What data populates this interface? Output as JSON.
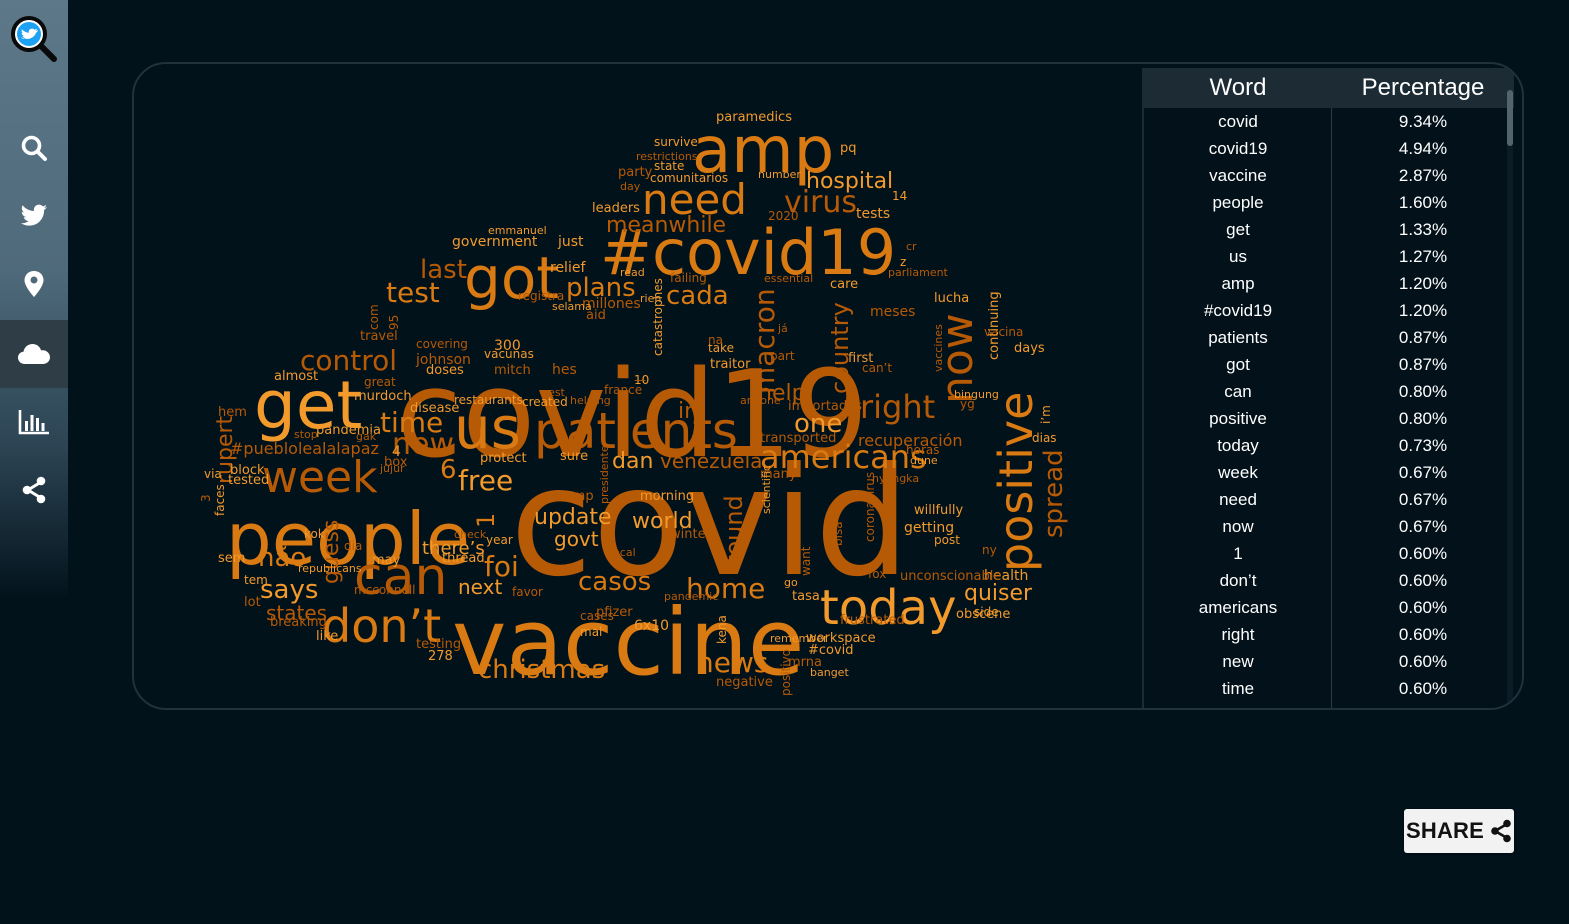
{
  "sidebar": {
    "items": [
      {
        "name": "search",
        "icon": "search-icon"
      },
      {
        "name": "twitter",
        "icon": "twitter-bird-icon"
      },
      {
        "name": "location",
        "icon": "map-pin-icon"
      },
      {
        "name": "word-cloud",
        "icon": "cloud-icon",
        "active": true
      },
      {
        "name": "chart",
        "icon": "bar-chart-icon"
      },
      {
        "name": "share",
        "icon": "share-icon"
      }
    ],
    "logo": "twitter-search-logo"
  },
  "table": {
    "headers": {
      "word": "Word",
      "percentage": "Percentage"
    },
    "rows": [
      {
        "word": "covid",
        "pct": "9.34%"
      },
      {
        "word": "covid19",
        "pct": "4.94%"
      },
      {
        "word": "vaccine",
        "pct": "2.87%"
      },
      {
        "word": "people",
        "pct": "1.60%"
      },
      {
        "word": "get",
        "pct": "1.33%"
      },
      {
        "word": "us",
        "pct": "1.27%"
      },
      {
        "word": "amp",
        "pct": "1.20%"
      },
      {
        "word": "#covid19",
        "pct": "1.20%"
      },
      {
        "word": "patients",
        "pct": "0.87%"
      },
      {
        "word": "got",
        "pct": "0.87%"
      },
      {
        "word": "can",
        "pct": "0.80%"
      },
      {
        "word": "positive",
        "pct": "0.80%"
      },
      {
        "word": "today",
        "pct": "0.73%"
      },
      {
        "word": "week",
        "pct": "0.67%"
      },
      {
        "word": "need",
        "pct": "0.67%"
      },
      {
        "word": "now",
        "pct": "0.67%"
      },
      {
        "word": "1",
        "pct": "0.60%"
      },
      {
        "word": "don’t",
        "pct": "0.60%"
      },
      {
        "word": "americans",
        "pct": "0.60%"
      },
      {
        "word": "right",
        "pct": "0.60%"
      },
      {
        "word": "new",
        "pct": "0.60%"
      },
      {
        "word": "time",
        "pct": "0.60%"
      }
    ]
  },
  "wordcloud": {
    "colors": {
      "dark": "#b75a05",
      "mid": "#d97a12",
      "light": "#f39a2c",
      "dim": "#8a4a0c"
    },
    "words": [
      {
        "t": "covid",
        "c": "dark"
      },
      {
        "t": "covid19",
        "c": "dark"
      },
      {
        "t": "vaccine",
        "c": "mid"
      },
      {
        "t": "people",
        "c": "mid"
      },
      {
        "t": "get",
        "c": "light"
      },
      {
        "t": "us",
        "c": "mid"
      },
      {
        "t": "amp",
        "c": "mid"
      },
      {
        "t": "#covid19",
        "c": "mid"
      },
      {
        "t": "patients",
        "c": "dark"
      },
      {
        "t": "got",
        "c": "mid"
      },
      {
        "t": "can",
        "c": "dark"
      },
      {
        "t": "positive",
        "c": "mid"
      },
      {
        "t": "today",
        "c": "light"
      },
      {
        "t": "week",
        "c": "dark"
      },
      {
        "t": "need",
        "c": "mid"
      },
      {
        "t": "now",
        "c": "dark"
      },
      {
        "t": "don’t",
        "c": "mid"
      },
      {
        "t": "americans",
        "c": "mid"
      },
      {
        "t": "right",
        "c": "dark"
      },
      {
        "t": "new",
        "c": "dark"
      },
      {
        "t": "time",
        "c": "mid"
      },
      {
        "t": "virus",
        "c": "dark"
      },
      {
        "t": "hospital",
        "c": "light"
      },
      {
        "t": "plans",
        "c": "mid"
      },
      {
        "t": "cada",
        "c": "mid"
      },
      {
        "t": "macron",
        "c": "dark"
      },
      {
        "t": "country",
        "c": "dark"
      },
      {
        "t": "test",
        "c": "mid"
      },
      {
        "t": "last",
        "c": "dark"
      },
      {
        "t": "control",
        "c": "dark"
      },
      {
        "t": "christmas",
        "c": "mid"
      },
      {
        "t": "news",
        "c": "mid"
      },
      {
        "t": "home",
        "c": "mid"
      },
      {
        "t": "casos",
        "c": "mid"
      },
      {
        "t": "foi",
        "c": "mid"
      },
      {
        "t": "free",
        "c": "light"
      },
      {
        "t": "says",
        "c": "light"
      },
      {
        "t": "não",
        "c": "mid"
      },
      {
        "t": "states",
        "c": "dark"
      },
      {
        "t": "spread",
        "c": "dark"
      },
      {
        "t": "quiser",
        "c": "light"
      },
      {
        "t": "one",
        "c": "light"
      },
      {
        "t": "help",
        "c": "dark"
      },
      {
        "t": "world",
        "c": "light"
      },
      {
        "t": "update",
        "c": "light"
      },
      {
        "t": "govt",
        "c": "light"
      },
      {
        "t": "there’s",
        "c": "light"
      },
      {
        "t": "next",
        "c": "light"
      },
      {
        "t": "dan",
        "c": "light"
      },
      {
        "t": "venezuela",
        "c": "dark"
      },
      {
        "t": "ini",
        "c": "dark"
      },
      {
        "t": "rupert",
        "c": "dark"
      },
      {
        "t": "6",
        "c": "mid"
      },
      {
        "t": "1",
        "c": "mid"
      },
      {
        "t": "meanwhile",
        "c": "dark"
      },
      {
        "t": "guess",
        "c": "dark"
      },
      {
        "t": "found",
        "c": "dark"
      },
      {
        "t": "recuperación",
        "c": "dark"
      },
      {
        "t": "#pueblolealalapaz",
        "c": "dark"
      },
      {
        "t": "paramedics",
        "c": "light"
      },
      {
        "t": "survive",
        "c": "light"
      },
      {
        "t": "party",
        "c": "dark"
      },
      {
        "t": "state",
        "c": "light"
      },
      {
        "t": "comunitarios",
        "c": "light"
      },
      {
        "t": "leaders",
        "c": "light"
      },
      {
        "t": "government",
        "c": "light"
      },
      {
        "t": "just",
        "c": "light"
      },
      {
        "t": "relief",
        "c": "light"
      },
      {
        "t": "registra",
        "c": "dark"
      },
      {
        "t": "millones",
        "c": "dark"
      },
      {
        "t": "aid",
        "c": "dark"
      },
      {
        "t": "tests",
        "c": "light"
      },
      {
        "t": "care",
        "c": "light"
      },
      {
        "t": "meses",
        "c": "dark"
      },
      {
        "t": "lucha",
        "c": "light"
      },
      {
        "t": "vacina",
        "c": "dark"
      },
      {
        "t": "days",
        "c": "light"
      },
      {
        "t": "covering",
        "c": "dark"
      },
      {
        "t": "johnson",
        "c": "dark"
      },
      {
        "t": "doses",
        "c": "light"
      },
      {
        "t": "300",
        "c": "light"
      },
      {
        "t": "vacunas",
        "c": "light"
      },
      {
        "t": "mitch",
        "c": "dark"
      },
      {
        "t": "hes",
        "c": "dark"
      },
      {
        "t": "first",
        "c": "light"
      },
      {
        "t": "can’t",
        "c": "dark"
      },
      {
        "t": "take",
        "c": "light"
      },
      {
        "t": "traitor",
        "c": "light"
      },
      {
        "t": "part",
        "c": "dark"
      },
      {
        "t": "almost",
        "c": "light"
      },
      {
        "t": "murdoch",
        "c": "light"
      },
      {
        "t": "restaurants",
        "c": "light"
      },
      {
        "t": "created",
        "c": "light"
      },
      {
        "t": "disease",
        "c": "light"
      },
      {
        "t": "pandemia",
        "c": "light"
      },
      {
        "t": "france",
        "c": "dark"
      },
      {
        "t": "importados",
        "c": "dark"
      },
      {
        "t": "transported",
        "c": "dark"
      },
      {
        "t": "horas",
        "c": "dark"
      },
      {
        "t": "dias",
        "c": "light"
      },
      {
        "t": "bingung",
        "c": "light"
      },
      {
        "t": "protect",
        "c": "light"
      },
      {
        "t": "sure",
        "c": "light"
      },
      {
        "t": "many",
        "c": "dark"
      },
      {
        "t": "block",
        "c": "light"
      },
      {
        "t": "tested",
        "c": "light"
      },
      {
        "t": "box",
        "c": "dark"
      },
      {
        "t": "hem",
        "c": "dark"
      },
      {
        "t": "trump",
        "c": "dark"
      },
      {
        "t": "morning",
        "c": "light"
      },
      {
        "t": "willfully",
        "c": "light"
      },
      {
        "t": "getting",
        "c": "light"
      },
      {
        "t": "post",
        "c": "light"
      },
      {
        "t": "health",
        "c": "light"
      },
      {
        "t": "year",
        "c": "light"
      },
      {
        "t": "thread",
        "c": "light"
      },
      {
        "t": "favor",
        "c": "dark"
      },
      {
        "t": "pfizer",
        "c": "dark"
      },
      {
        "t": "tasa",
        "c": "light"
      },
      {
        "t": "fox",
        "c": "dark"
      },
      {
        "t": "unconscionable",
        "c": "dark"
      },
      {
        "t": "obscene",
        "c": "light"
      },
      {
        "t": "side",
        "c": "light"
      },
      {
        "t": "frustrated",
        "c": "dark"
      },
      {
        "t": "workspace",
        "c": "light"
      },
      {
        "t": "#covid",
        "c": "light"
      },
      {
        "t": "mrna",
        "c": "dark"
      },
      {
        "t": "negative",
        "c": "dark"
      },
      {
        "t": "testing",
        "c": "dark"
      },
      {
        "t": "278",
        "c": "light"
      },
      {
        "t": "6x10",
        "c": "light"
      },
      {
        "t": "cases",
        "c": "dark"
      },
      {
        "t": "mal",
        "c": "light"
      },
      {
        "t": "mcconnell",
        "c": "dark"
      },
      {
        "t": "like",
        "c": "light"
      },
      {
        "t": "breaking",
        "c": "dark"
      },
      {
        "t": "lot",
        "c": "dark"
      },
      {
        "t": "sem",
        "c": "light"
      },
      {
        "t": "tem",
        "c": "light"
      },
      {
        "t": "dia",
        "c": "dark"
      },
      {
        "t": "may",
        "c": "light"
      },
      {
        "t": "republicans",
        "c": "light"
      },
      {
        "t": "kok",
        "c": "light"
      },
      {
        "t": "faces",
        "c": "light"
      },
      {
        "t": "via",
        "c": "light"
      },
      {
        "t": "travel",
        "c": "dark"
      },
      {
        "t": "great",
        "c": "dark"
      },
      {
        "t": "com",
        "c": "dark"
      },
      {
        "t": "95",
        "c": "dark"
      },
      {
        "t": "restrictions",
        "c": "dark"
      },
      {
        "t": "day",
        "c": "dark"
      },
      {
        "t": "number",
        "c": "light"
      },
      {
        "t": "pq",
        "c": "light"
      },
      {
        "t": "14",
        "c": "light"
      },
      {
        "t": "2020",
        "c": "dark"
      },
      {
        "t": "emmanuel",
        "c": "light"
      },
      {
        "t": "read",
        "c": "light"
      },
      {
        "t": "failing",
        "c": "dark"
      },
      {
        "t": "essential",
        "c": "dark"
      },
      {
        "t": "parliament",
        "c": "dark"
      },
      {
        "t": "cr",
        "c": "dark"
      },
      {
        "t": "z",
        "c": "light"
      },
      {
        "t": "rien",
        "c": "light"
      },
      {
        "t": "selama",
        "c": "light"
      },
      {
        "t": "já",
        "c": "dark"
      },
      {
        "t": "na",
        "c": "dark"
      },
      {
        "t": "cest",
        "c": "dark"
      },
      {
        "t": "helping",
        "c": "dark"
      },
      {
        "t": "anyone",
        "c": "dark"
      },
      {
        "t": "yg",
        "c": "dark"
      },
      {
        "t": "stop",
        "c": "dark"
      },
      {
        "t": "gak",
        "c": "dark"
      },
      {
        "t": "jujur",
        "c": "dark"
      },
      {
        "t": "check",
        "c": "dark"
      },
      {
        "t": "local",
        "c": "dark"
      },
      {
        "t": "winter",
        "c": "dark"
      },
      {
        "t": "dune",
        "c": "light"
      },
      {
        "t": "go",
        "c": "light"
      },
      {
        "t": "remember",
        "c": "light"
      },
      {
        "t": "banget",
        "c": "light"
      },
      {
        "t": "kena",
        "c": "light"
      },
      {
        "t": "positivo",
        "c": "dark"
      },
      {
        "t": "want",
        "c": "dark"
      },
      {
        "t": "due",
        "c": "dark"
      },
      {
        "t": "bisa",
        "c": "dark"
      },
      {
        "t": "coronavirus",
        "c": "dark"
      },
      {
        "t": "catastrophes",
        "c": "light"
      },
      {
        "t": "continuing",
        "c": "light"
      },
      {
        "t": "vaccines",
        "c": "dark"
      },
      {
        "t": "i’m",
        "c": "light"
      },
      {
        "t": "presidente",
        "c": "dark"
      },
      {
        "t": "scientific",
        "c": "light"
      },
      {
        "t": "pandemic",
        "c": "dark"
      },
      {
        "t": "nyangka",
        "c": "dark"
      },
      {
        "t": "ny",
        "c": "dark"
      },
      {
        "t": "3",
        "c": "dark"
      },
      {
        "t": "4",
        "c": "light"
      },
      {
        "t": "10",
        "c": "light"
      },
      {
        "t": "—",
        "c": "dark"
      }
    ]
  },
  "share": {
    "label": "SHARE",
    "icon": "share-icon"
  }
}
